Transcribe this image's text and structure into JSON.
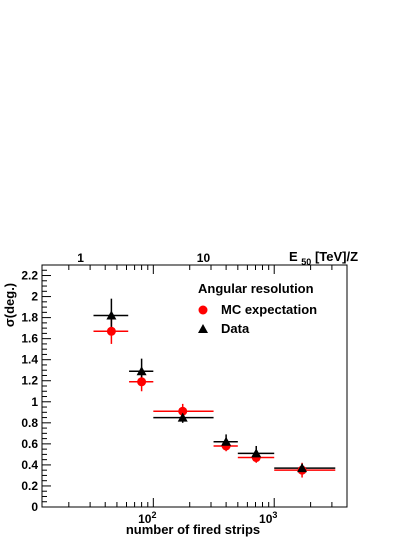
{
  "chart_data": {
    "type": "scatter",
    "title": "",
    "xlabel": "number of fired strips",
    "ylabel": "σ(deg.)",
    "top_axis_label_main": "E",
    "top_axis_label_sub": "50",
    "top_axis_label_rest": "[TeV]/Z",
    "x_scale": "log",
    "xlim": [
      12,
      4000
    ],
    "ylim": [
      0,
      2.3
    ],
    "grid": false,
    "legend_title": "Angular resolution",
    "legend_position": "top-right",
    "x_tick_labels": [
      {
        "value": 100,
        "base": "10",
        "exp": "2"
      },
      {
        "value": 1000,
        "base": "10",
        "exp": "3"
      }
    ],
    "y_tick_labels": [
      "0",
      "0.2",
      "0.4",
      "0.6",
      "0.8",
      "1",
      "1.2",
      "1.4",
      "1.6",
      "1.8",
      "2",
      "2.2"
    ],
    "top_tick_labels": [
      {
        "label": "1",
        "x": 19
      },
      {
        "label": "10",
        "x": 340
      }
    ],
    "series": [
      {
        "name": "MC expectation",
        "marker": "circle",
        "color": "#ff0000",
        "points": [
          {
            "x": 45,
            "y": 1.67,
            "xlo": 32,
            "xhi": 62,
            "ylo": 1.55,
            "yhi": 1.79
          },
          {
            "x": 80,
            "y": 1.19,
            "xlo": 63,
            "xhi": 100,
            "ylo": 1.1,
            "yhi": 1.28
          },
          {
            "x": 175,
            "y": 0.91,
            "xlo": 100,
            "xhi": 315,
            "ylo": 0.84,
            "yhi": 0.98
          },
          {
            "x": 400,
            "y": 0.58,
            "xlo": 315,
            "xhi": 500,
            "ylo": 0.53,
            "yhi": 0.63
          },
          {
            "x": 710,
            "y": 0.47,
            "xlo": 500,
            "xhi": 1000,
            "ylo": 0.42,
            "yhi": 0.52
          },
          {
            "x": 1700,
            "y": 0.35,
            "xlo": 1000,
            "xhi": 3200,
            "ylo": 0.28,
            "yhi": 0.42
          }
        ]
      },
      {
        "name": "Data",
        "marker": "triangle",
        "color": "#000000",
        "points": [
          {
            "x": 45,
            "y": 1.82,
            "xlo": 32,
            "xhi": 62,
            "ylo": 1.67,
            "yhi": 1.98
          },
          {
            "x": 80,
            "y": 1.29,
            "xlo": 63,
            "xhi": 100,
            "ylo": 1.17,
            "yhi": 1.41
          },
          {
            "x": 175,
            "y": 0.85,
            "xlo": 100,
            "xhi": 315,
            "ylo": 0.8,
            "yhi": 0.9
          },
          {
            "x": 400,
            "y": 0.62,
            "xlo": 315,
            "xhi": 500,
            "ylo": 0.55,
            "yhi": 0.69
          },
          {
            "x": 710,
            "y": 0.51,
            "xlo": 500,
            "xhi": 1000,
            "ylo": 0.44,
            "yhi": 0.58
          },
          {
            "x": 1700,
            "y": 0.37,
            "xlo": 1000,
            "xhi": 3200,
            "ylo": 0.33,
            "yhi": 0.41
          }
        ]
      }
    ]
  }
}
